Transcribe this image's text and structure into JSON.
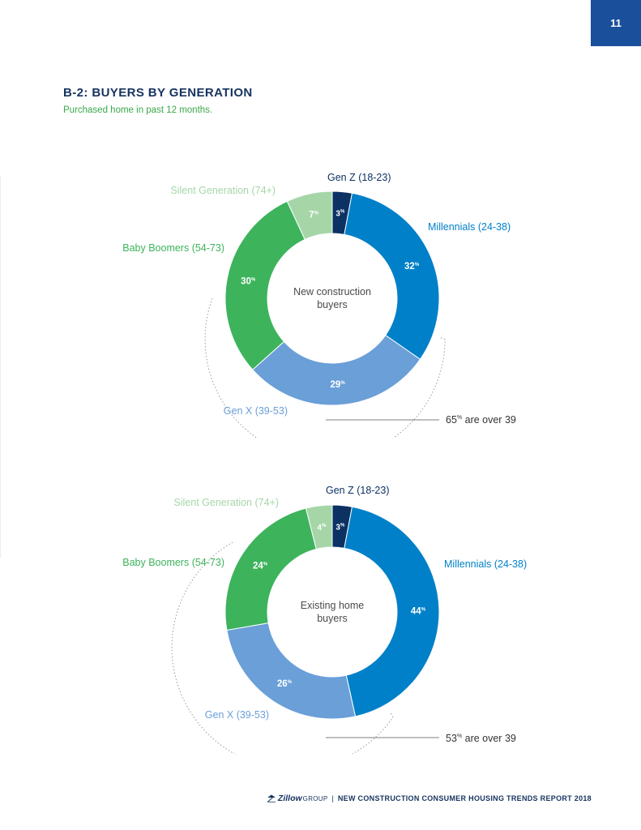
{
  "page": {
    "number": "11",
    "title": "B-2: BUYERS BY GENERATION",
    "subtitle": "Purchased home in past 12 months."
  },
  "colors": {
    "gen_z": "#0c3263",
    "millennials": "#0080c8",
    "gen_x": "#6a9fd8",
    "baby_boomers": "#3db35c",
    "silent_generation": "#a6d6a8",
    "title": "#16335f",
    "subtitle": "#3aa84a"
  },
  "chart_data": [
    {
      "type": "pie",
      "style": "donut",
      "center_label": [
        "New construction",
        "buyers"
      ],
      "categories": [
        "Gen Z (18-23)",
        "Millennials (24-38)",
        "Gen X (39-53)",
        "Baby Boomers (54-73)",
        "Silent Generation (74+)"
      ],
      "values": [
        3,
        32,
        29,
        30,
        7
      ],
      "value_suffix": "%",
      "annotation": {
        "value": "65",
        "suffix": "%",
        "text": "are over 39"
      }
    },
    {
      "type": "pie",
      "style": "donut",
      "center_label": [
        "Existing home",
        "buyers"
      ],
      "categories": [
        "Gen Z (18-23)",
        "Millennials (24-38)",
        "Gen X (39-53)",
        "Baby Boomers (54-73)",
        "Silent Generation (74+)"
      ],
      "values": [
        3,
        44,
        26,
        24,
        4
      ],
      "value_suffix": "%",
      "annotation": {
        "value": "53",
        "suffix": "%",
        "text": "are over 39"
      }
    }
  ],
  "footer": {
    "logo": "Zillow",
    "logo_group": "GROUP",
    "separator": "|",
    "report_title": "NEW CONSTRUCTION CONSUMER HOUSING TRENDS REPORT 2018"
  }
}
